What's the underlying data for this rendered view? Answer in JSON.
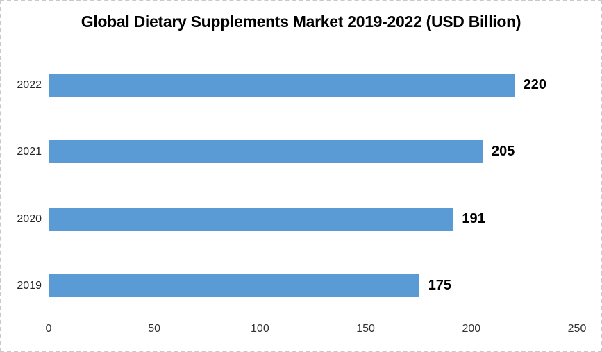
{
  "chart_data": {
    "type": "bar",
    "orientation": "horizontal",
    "title": "Global Dietary Supplements Market 2019-2022 (USD Billion)",
    "categories": [
      "2019",
      "2020",
      "2021",
      "2022"
    ],
    "values": [
      175,
      191,
      205,
      220
    ],
    "data_labels": [
      "175",
      "191",
      "205",
      "220"
    ],
    "category_order_top_to_bottom": [
      "2022",
      "2021",
      "2020",
      "2019"
    ],
    "xlabel": "",
    "ylabel": "",
    "xlim": [
      0,
      250
    ],
    "xticks": [
      0,
      50,
      100,
      150,
      200,
      250
    ],
    "grid": false,
    "legend_position": "none"
  },
  "colors": {
    "bar": "#5B9BD5",
    "axis_line": "#D9D9D9",
    "title_text": "#000000",
    "value_label_text": "#000000",
    "tick_label_text": "#333333",
    "category_label_text": "#262626",
    "background": "#FFFFFF",
    "border": "#C9C9C9"
  }
}
